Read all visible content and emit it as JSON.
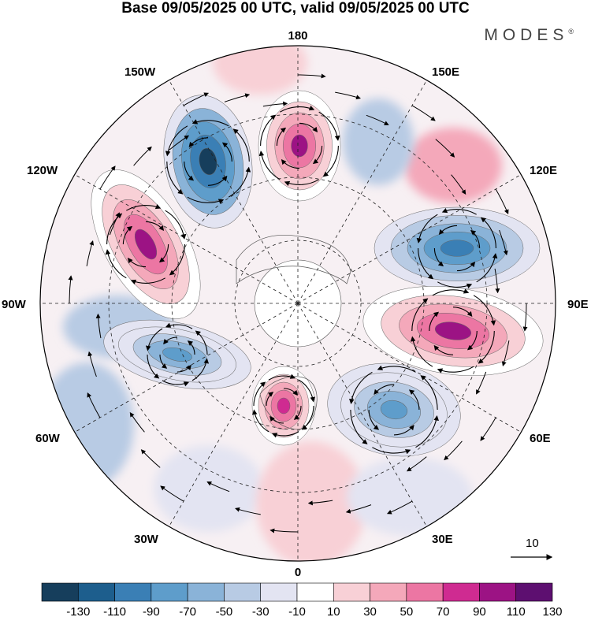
{
  "header": {
    "title": "Base 09/05/2025 00 UTC, valid 09/05/2025 00 UTC",
    "brand": "MODES",
    "brand_mark": "®"
  },
  "map": {
    "projection": "north polar stereographic",
    "meridian_labels": {
      "top": "180",
      "bottom": "0",
      "left": "90W",
      "right": "90E",
      "upper_left_1": "150W",
      "upper_left_2": "120W",
      "upper_right_1": "150E",
      "upper_right_2": "120E",
      "lower_left_1": "60W",
      "lower_left_2": "30W",
      "lower_right_1": "60E",
      "lower_right_2": "30E"
    },
    "reference_vector": {
      "label": "10"
    },
    "anomaly_centers": [
      {
        "sign": "negative",
        "level": -130,
        "sector": "150W-120W"
      },
      {
        "sign": "positive",
        "level": 110,
        "sector": "180"
      },
      {
        "sign": "positive",
        "level": 110,
        "sector": "120W-90W"
      },
      {
        "sign": "negative",
        "level": -90,
        "sector": "120E"
      },
      {
        "sign": "positive",
        "level": 110,
        "sector": "90E"
      },
      {
        "sign": "negative",
        "level": -70,
        "sector": "90W-60W"
      },
      {
        "sign": "positive",
        "level": 90,
        "sector": "0-30W"
      },
      {
        "sign": "negative",
        "level": -70,
        "sector": "30E-60E"
      }
    ]
  },
  "colorbar": {
    "labels": [
      "-130",
      "-110",
      "-90",
      "-70",
      "-50",
      "-30",
      "-10",
      "10",
      "30",
      "50",
      "70",
      "90",
      "110",
      "130"
    ],
    "colors": [
      "#163e5c",
      "#1d5e8d",
      "#3a7fb5",
      "#5e9dcb",
      "#8ab3d8",
      "#b8cbe4",
      "#e3e4f2",
      "#ffffff",
      "#f8d0d6",
      "#f4a8ba",
      "#ec76a3",
      "#cf2b91",
      "#9c1384",
      "#5d0f70"
    ]
  }
}
